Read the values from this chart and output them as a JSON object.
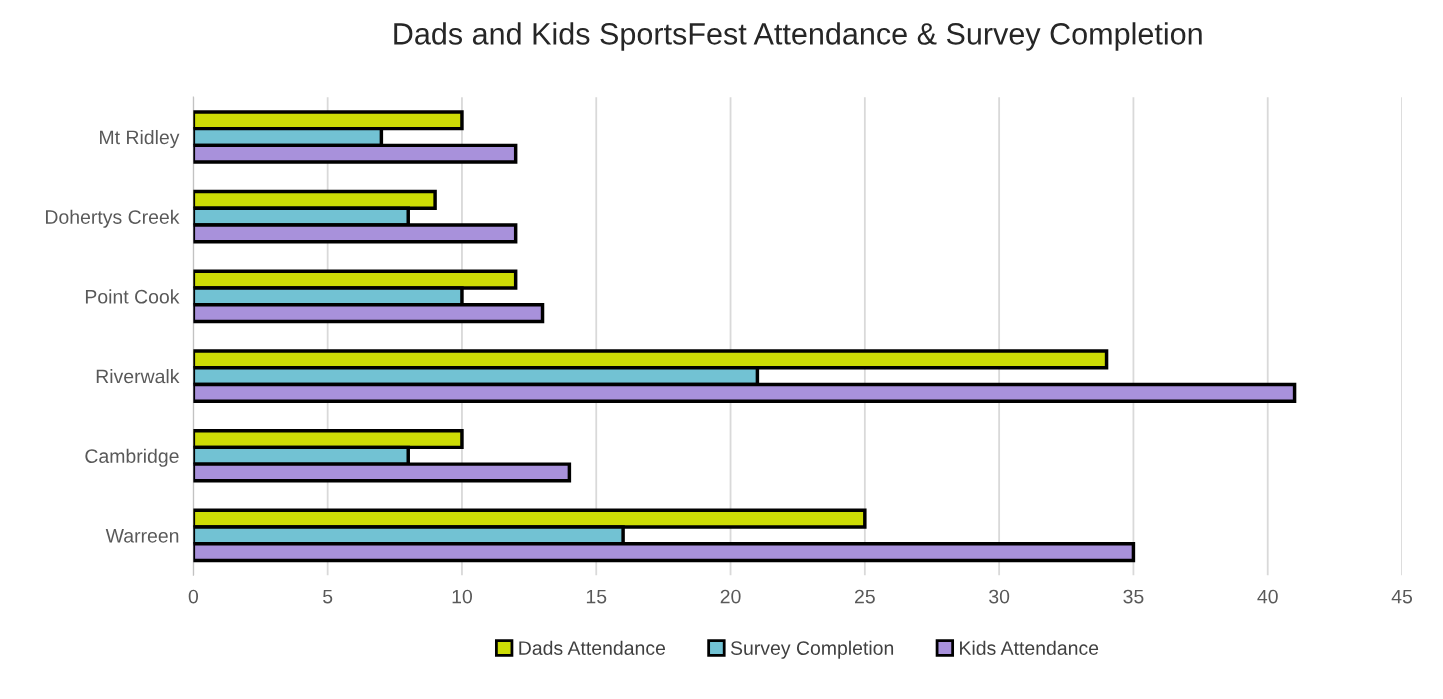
{
  "chart_data": {
    "type": "bar",
    "orientation": "horizontal",
    "title": "Dads and Kids SportsFest Attendance & Survey Completion",
    "categories": [
      "Mt Ridley",
      "Dohertys Creek",
      "Point Cook",
      "Riverwalk",
      "Cambridge",
      "Warreen"
    ],
    "series": [
      {
        "name": "Dads Attendance",
        "color": "#cddc05",
        "values": [
          10,
          9,
          12,
          34,
          10,
          25
        ]
      },
      {
        "name": "Survey Completion",
        "color": "#72c2d3",
        "values": [
          7,
          8,
          10,
          21,
          8,
          16
        ]
      },
      {
        "name": "Kids Attendance",
        "color": "#a891db",
        "values": [
          12,
          12,
          13,
          41,
          14,
          35
        ]
      }
    ],
    "xlim": [
      0,
      45
    ],
    "xticks": [
      0,
      5,
      10,
      15,
      20,
      25,
      30,
      35,
      40,
      45
    ],
    "grid": "x",
    "legend": "bottom"
  }
}
